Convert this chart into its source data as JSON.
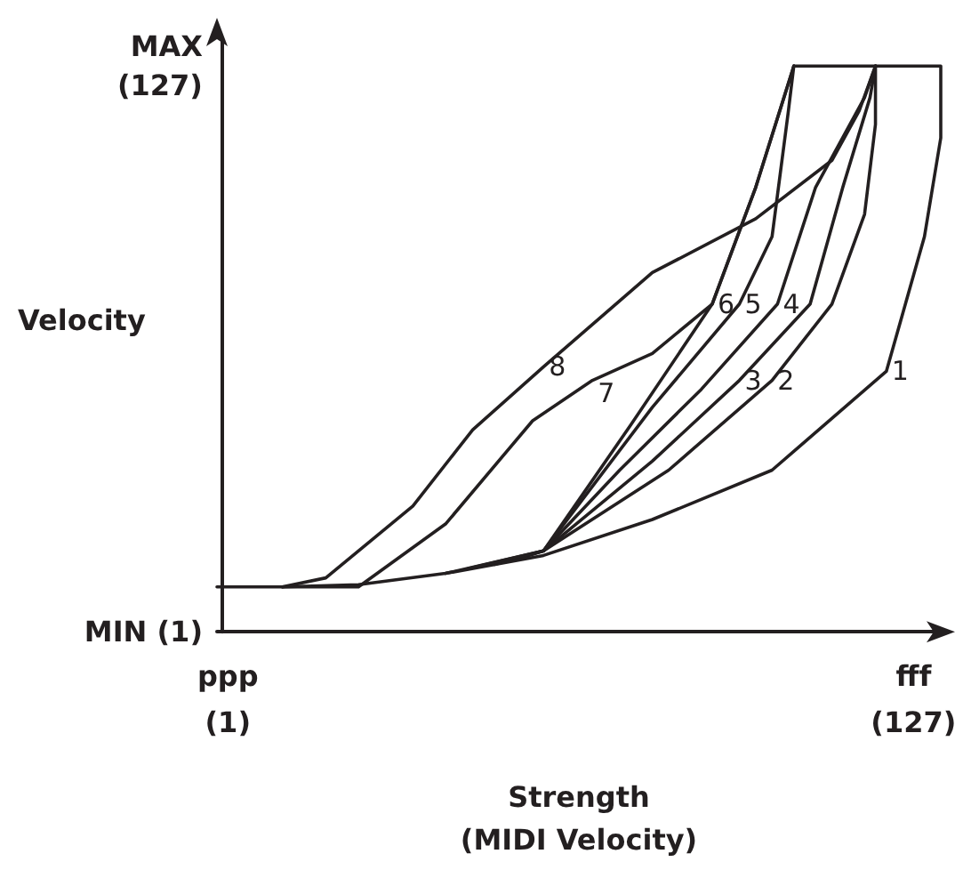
{
  "chart_data": {
    "type": "line",
    "xlabel": "Strength\n(MIDI Velocity)",
    "ylabel": "Velocity",
    "xlim": [
      -1,
      132
    ],
    "ylim": [
      1,
      133
    ],
    "xticks": [
      {
        "value": 1,
        "label": "ppp\n(1)"
      },
      {
        "value": 127,
        "label": "fff\n(127)"
      }
    ],
    "yticks": [
      {
        "value": 1,
        "label": "MIN (1)"
      },
      {
        "value": 127,
        "label": "MAX\n(127)"
      }
    ],
    "grid": false,
    "marker": "none",
    "line_style": "solid",
    "series": [
      {
        "name": "1",
        "color": "#231f20",
        "x": [
          -1,
          11,
          25,
          41,
          59,
          79,
          101,
          122,
          129,
          132,
          132,
          105
        ],
        "values": [
          11,
          11,
          11.5,
          14,
          18,
          26,
          37,
          59,
          89,
          111,
          127,
          127
        ]
      },
      {
        "name": "2",
        "color": "#231f20",
        "x": [
          59,
          82,
          101,
          112,
          118,
          120,
          120
        ],
        "values": [
          19,
          37,
          57,
          74,
          94,
          114,
          127
        ]
      },
      {
        "name": "3",
        "color": "#231f20",
        "x": [
          55,
          59,
          79,
          95,
          108,
          114,
          119,
          120
        ],
        "values": [
          17.5,
          19,
          39,
          57,
          74,
          100,
          120,
          127
        ]
      },
      {
        "name": "4",
        "color": "#231f20",
        "x": [
          50,
          59,
          73,
          88,
          102,
          109,
          118,
          120
        ],
        "values": [
          16,
          19,
          37,
          55,
          74,
          100,
          120,
          127
        ]
      },
      {
        "name": "5",
        "color": "#231f20",
        "x": [
          45,
          59,
          79,
          95,
          101,
          104,
          105
        ],
        "values": [
          15,
          19,
          51,
          74,
          89,
          117,
          127
        ]
      },
      {
        "name": "6",
        "color": "#231f20",
        "x": [
          41,
          59,
          75,
          90,
          98,
          105
        ],
        "values": [
          14,
          19,
          47,
          74,
          100,
          127
        ]
      },
      {
        "name": "7",
        "color": "#231f20",
        "x": [
          11,
          25,
          41,
          57,
          68,
          79,
          90,
          98,
          105
        ],
        "values": [
          11,
          11,
          25,
          48,
          57,
          63,
          74,
          100,
          127
        ]
      },
      {
        "name": "8",
        "color": "#231f20",
        "x": [
          11,
          19,
          35,
          46,
          59,
          79,
          98,
          112,
          117,
          120
        ],
        "values": [
          11,
          13,
          29,
          46,
          60,
          81,
          93,
          106,
          117,
          127
        ]
      }
    ]
  }
}
